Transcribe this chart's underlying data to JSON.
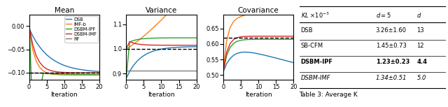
{
  "mean_target": -0.1,
  "variance_target": 1.0,
  "covariance_target": 0.62,
  "iterations": 20,
  "colors": {
    "DSB": "#1f77b4",
    "IMF-b": "#ff7f0e",
    "DSBM-IPF": "#2ca02c",
    "DSBM-IMF": "#d62728",
    "RF": "#7f7f7f"
  },
  "legend_labels": [
    "DSB",
    "IMF-b",
    "DSBM-IPF",
    "DSBM-IMF",
    "RF"
  ],
  "titles": [
    "Mean",
    "Variance",
    "Covariance"
  ],
  "xlabel": "Iteration",
  "ylims_mean": [
    -0.115,
    0.025
  ],
  "ylims_variance": [
    0.875,
    1.14
  ],
  "ylims_covariance": [
    0.485,
    0.695
  ],
  "yticks_mean": [
    0.0,
    -0.05,
    -0.1
  ],
  "yticks_variance": [
    0.9,
    1.0,
    1.1
  ],
  "yticks_covariance": [
    0.5,
    0.55,
    0.6,
    0.65
  ]
}
